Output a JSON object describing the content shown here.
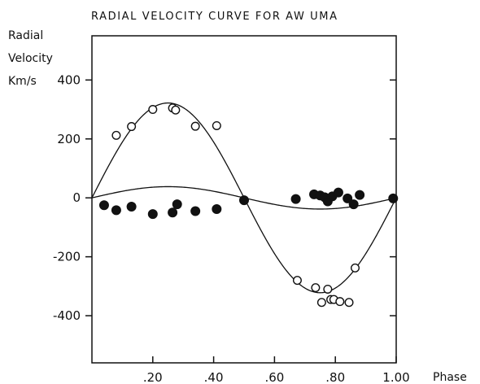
{
  "chart_data": {
    "type": "scatter",
    "title": "RADIAL VELOCITY CURVE FOR AW UMA",
    "ylabel_lines": [
      "Radial",
      "Velocity",
      "Km/s"
    ],
    "xlabel": "Phase",
    "xlim": [
      0.0,
      1.0
    ],
    "ylim": [
      -560,
      550
    ],
    "xticks": [
      {
        "value": 0.2,
        "label": ".20"
      },
      {
        "value": 0.4,
        "label": ".40"
      },
      {
        "value": 0.6,
        "label": ".60"
      },
      {
        "value": 0.8,
        "label": ".80"
      },
      {
        "value": 1.0,
        "label": "1.00"
      }
    ],
    "yticks": [
      {
        "value": 400,
        "label": "400"
      },
      {
        "value": 200,
        "label": "200"
      },
      {
        "value": 0,
        "label": "0"
      },
      {
        "value": -200,
        "label": "-200"
      },
      {
        "value": -400,
        "label": "-400"
      }
    ],
    "series": [
      {
        "marker": "open-circle",
        "points": [
          [
            0.08,
            212
          ],
          [
            0.13,
            242
          ],
          [
            0.2,
            300
          ],
          [
            0.265,
            305
          ],
          [
            0.275,
            298
          ],
          [
            0.34,
            243
          ],
          [
            0.41,
            245
          ],
          [
            0.675,
            -280
          ],
          [
            0.735,
            -305
          ],
          [
            0.755,
            -355
          ],
          [
            0.775,
            -310
          ],
          [
            0.785,
            -345
          ],
          [
            0.795,
            -345
          ],
          [
            0.815,
            -352
          ],
          [
            0.845,
            -355
          ],
          [
            0.865,
            -238
          ]
        ]
      },
      {
        "marker": "filled-circle",
        "points": [
          [
            0.04,
            -25
          ],
          [
            0.08,
            -42
          ],
          [
            0.13,
            -30
          ],
          [
            0.2,
            -55
          ],
          [
            0.265,
            -50
          ],
          [
            0.28,
            -22
          ],
          [
            0.34,
            -45
          ],
          [
            0.41,
            -38
          ],
          [
            0.5,
            -8
          ],
          [
            0.67,
            -4
          ],
          [
            0.73,
            12
          ],
          [
            0.75,
            8
          ],
          [
            0.765,
            2
          ],
          [
            0.775,
            -12
          ],
          [
            0.79,
            5
          ],
          [
            0.81,
            18
          ],
          [
            0.84,
            -2
          ],
          [
            0.86,
            -22
          ],
          [
            0.88,
            10
          ],
          [
            0.99,
            -2
          ]
        ]
      }
    ],
    "fit_curves": [
      {
        "for": "open-circle",
        "amplitude": 322,
        "offset": 0
      },
      {
        "for": "filled-circle",
        "amplitude": 38,
        "offset": 0
      }
    ],
    "grid": false
  }
}
